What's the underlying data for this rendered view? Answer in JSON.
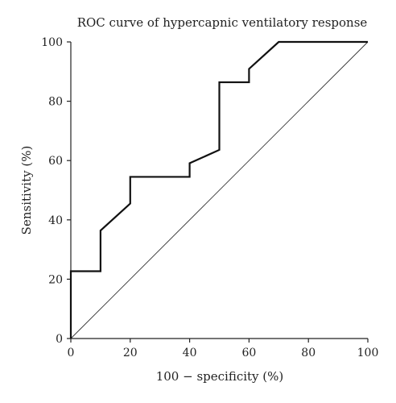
{
  "chart_data": {
    "type": "line",
    "title": "ROC curve of hypercapnic ventilatory response",
    "xlabel": "100 − specificity (%)",
    "ylabel": "Sensitivity (%)",
    "xlim": [
      0,
      100
    ],
    "ylim": [
      0,
      100
    ],
    "x_ticks": [
      0,
      20,
      40,
      60,
      80,
      100
    ],
    "y_ticks": [
      0,
      20,
      40,
      60,
      80,
      100
    ],
    "grid": false,
    "series": [
      {
        "x": [
          0,
          0,
          10,
          10,
          20,
          20,
          40,
          40,
          50,
          50,
          60,
          60,
          70,
          100
        ],
        "y": [
          0,
          22.7,
          22.7,
          36.4,
          45.5,
          54.5,
          54.5,
          59.1,
          63.6,
          86.4,
          86.4,
          90.9,
          100,
          100
        ]
      },
      {
        "x": [
          0,
          100
        ],
        "y": [
          0,
          100
        ]
      }
    ]
  }
}
